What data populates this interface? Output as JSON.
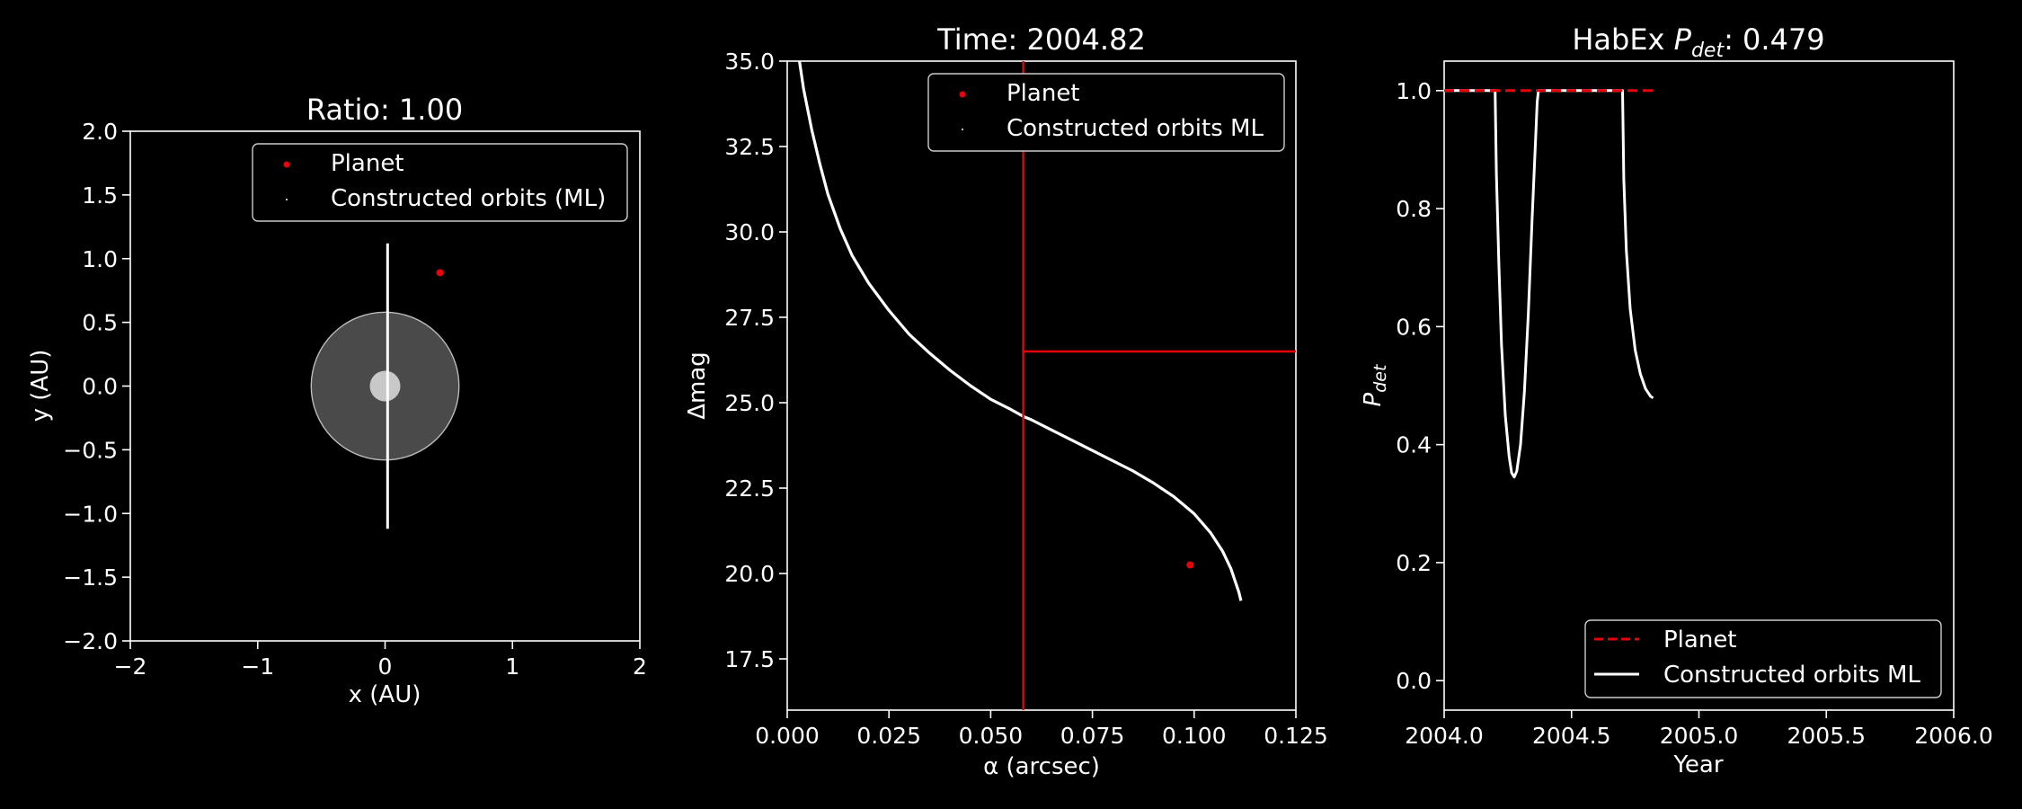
{
  "colors": {
    "background": "#000000",
    "foreground": "#ffffff",
    "planet": "#e8000b",
    "constructed": "#ffffff",
    "star_fill": "#c8c8c8",
    "zone_fill": "#4a4a4a"
  },
  "chart_data": [
    {
      "id": "orbit",
      "type": "scatter",
      "title": "Ratio: 1.00",
      "xlabel": "x (AU)",
      "ylabel": "y (AU)",
      "xlim": [
        -2,
        2
      ],
      "ylim": [
        -2,
        2
      ],
      "xticks": [
        "−2",
        "−1",
        "0",
        "1",
        "2"
      ],
      "yticks": [
        "−2.0",
        "−1.5",
        "−1.0",
        "−0.5",
        "0.0",
        "0.5",
        "1.0",
        "1.5",
        "2.0"
      ],
      "grid": false,
      "legend": {
        "placement": "top-right",
        "entries": [
          "Planet",
          "Constructed orbits (ML)"
        ]
      },
      "planet": {
        "x": 0.43,
        "y": 0.89
      },
      "constructed_orbit": {
        "x": [
          0.02,
          0.02
        ],
        "y": [
          -1.12,
          1.12
        ]
      },
      "star": {
        "x": 0,
        "y": 0,
        "radius": 0.12
      },
      "habitable_zone": {
        "x": 0,
        "y": 0,
        "radius": 0.58
      }
    },
    {
      "id": "dmag",
      "type": "line",
      "title": "Time: 2004.82",
      "xlabel": "α (arcsec)",
      "ylabel": "Δmag",
      "xlim": [
        0,
        0.125
      ],
      "ylim": [
        16,
        35
      ],
      "xticks": [
        "0.000",
        "0.025",
        "0.050",
        "0.075",
        "0.100",
        "0.125"
      ],
      "yticks": [
        "17.5",
        "20.0",
        "22.5",
        "25.0",
        "27.5",
        "30.0",
        "32.5",
        "35.0"
      ],
      "grid": false,
      "legend": {
        "placement": "top-right",
        "entries": [
          "Planet",
          "Constructed orbits ML"
        ]
      },
      "planet": {
        "x": 0.099,
        "y": 20.25
      },
      "iwa_line_x": 0.058,
      "dmag_limit_y": 26.5,
      "constructed_curve": {
        "x": [
          0.003,
          0.004,
          0.006,
          0.008,
          0.01,
          0.013,
          0.016,
          0.02,
          0.025,
          0.03,
          0.035,
          0.04,
          0.045,
          0.05,
          0.055,
          0.058,
          0.06,
          0.065,
          0.07,
          0.075,
          0.08,
          0.085,
          0.09,
          0.095,
          0.1,
          0.104,
          0.107,
          0.109,
          0.11,
          0.111,
          0.1115
        ],
        "y": [
          35.0,
          34.2,
          33.0,
          32.0,
          31.1,
          30.1,
          29.3,
          28.5,
          27.7,
          27.0,
          26.45,
          25.95,
          25.5,
          25.1,
          24.8,
          24.6,
          24.5,
          24.2,
          23.9,
          23.6,
          23.3,
          23.0,
          22.65,
          22.25,
          21.75,
          21.2,
          20.65,
          20.15,
          19.8,
          19.45,
          19.2
        ]
      }
    },
    {
      "id": "pdet",
      "type": "line",
      "title": "HabEx ",
      "title_var": "P",
      "title_sub": "det",
      "title_value": ": 0.479",
      "xlabel": "Year",
      "ylabel": "P",
      "ylabel_sub": "det",
      "xlim": [
        2004.0,
        2006.0
      ],
      "ylim": [
        -0.05,
        1.05
      ],
      "xticks": [
        "2004.0",
        "2004.5",
        "2005.0",
        "2005.5",
        "2006.0"
      ],
      "yticks": [
        "0.0",
        "0.2",
        "0.4",
        "0.6",
        "0.8",
        "1.0"
      ],
      "grid": false,
      "legend": {
        "placement": "lower-right",
        "entries": [
          "Planet",
          "Constructed orbits ML"
        ]
      },
      "series": [
        {
          "name": "Planet",
          "style": "dashed",
          "x": [
            2004.0,
            2004.82
          ],
          "y": [
            1.0,
            1.0
          ]
        },
        {
          "name": "Constructed orbits ML",
          "style": "solid",
          "x": [
            2004.0,
            2004.2,
            2004.205,
            2004.215,
            2004.225,
            2004.24,
            2004.255,
            2004.265,
            2004.275,
            2004.285,
            2004.3,
            2004.315,
            2004.33,
            2004.345,
            2004.36,
            2004.365,
            2004.37,
            2004.7,
            2004.705,
            2004.715,
            2004.73,
            2004.75,
            2004.77,
            2004.79,
            2004.81,
            2004.82
          ],
          "y": [
            1.0,
            1.0,
            0.86,
            0.7,
            0.57,
            0.45,
            0.38,
            0.352,
            0.345,
            0.355,
            0.4,
            0.49,
            0.62,
            0.78,
            0.93,
            0.98,
            1.0,
            1.0,
            0.85,
            0.73,
            0.63,
            0.56,
            0.52,
            0.495,
            0.482,
            0.479
          ]
        }
      ]
    }
  ]
}
